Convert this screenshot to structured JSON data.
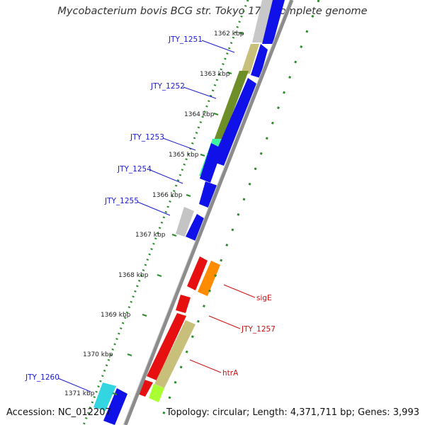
{
  "title": "Mycobacterium bovis BCG str. Tokyo 172, complete genome",
  "footer": {
    "accession": "Accession: NC_012207",
    "topology": "Topology: circular; Length: 4,371,711 bp; Genes: 3,993"
  },
  "colors": {
    "backbone": "#8c8c8c",
    "gc_skew_dots": "#2e8b2e",
    "cds_forward": "#1010e8",
    "cds_reverse": "#e61010"
  },
  "kbp_ticks": [
    "1362 kbp",
    "1363 kbp",
    "1364 kbp",
    "1365 kbp",
    "1366 kbp",
    "1367 kbp",
    "1368 kbp",
    "1369 kbp",
    "1370 kbp",
    "1371 kbp"
  ],
  "gene_labels_left": [
    "JTY_1251",
    "JTY_1252",
    "JTY_1253",
    "JTY_1254",
    "JTY_1255",
    "JTY_1260"
  ],
  "gene_labels_right": [
    "sigE",
    "JTY_1257",
    "htrA"
  ]
}
